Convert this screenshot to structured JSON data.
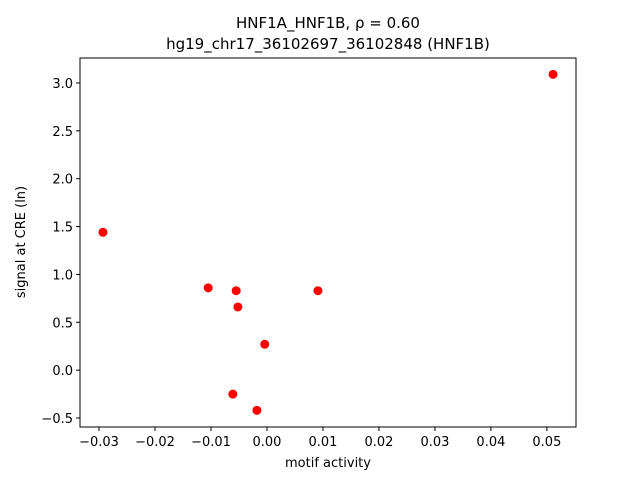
{
  "chart_data": {
    "type": "scatter",
    "title": "HNF1A_HNF1B, ρ = 0.60",
    "subtitle": "hg19_chr17_36102697_36102848 (HNF1B)",
    "x_label": "motif activity",
    "y_label": "signal at CRE (ln)",
    "color": "#ff0000",
    "x": [
      0.0511,
      -0.0293,
      -0.0105,
      -0.0055,
      -0.0052,
      0.0091,
      -0.0004,
      -0.0061,
      -0.0018
    ],
    "values": [
      3.09,
      1.44,
      0.86,
      0.83,
      0.66,
      0.83,
      0.27,
      -0.25,
      -0.42
    ],
    "xlim": [
      -0.0334,
      0.0552
    ],
    "ylim": [
      -0.594,
      3.261
    ],
    "xticks": [
      {
        "value": -0.03,
        "label": "−0.03"
      },
      {
        "value": -0.02,
        "label": "−0.02"
      },
      {
        "value": -0.01,
        "label": "−0.01"
      },
      {
        "value": 0,
        "label": "0.00"
      },
      {
        "value": 0.01,
        "label": "0.01"
      },
      {
        "value": 0.02,
        "label": "0.02"
      },
      {
        "value": 0.03,
        "label": "0.03"
      },
      {
        "value": 0.04,
        "label": "0.04"
      },
      {
        "value": 0.05,
        "label": "0.05"
      }
    ],
    "yticks": [
      {
        "value": -0.5,
        "label": "−0.5"
      },
      {
        "value": 0,
        "label": "0.0"
      },
      {
        "value": 0.5,
        "label": "0.5"
      },
      {
        "value": 1,
        "label": "1.0"
      },
      {
        "value": 1.5,
        "label": "1.5"
      },
      {
        "value": 2,
        "label": "2.0"
      },
      {
        "value": 2.5,
        "label": "2.5"
      },
      {
        "value": 3,
        "label": "3.0"
      }
    ],
    "grid": false
  }
}
